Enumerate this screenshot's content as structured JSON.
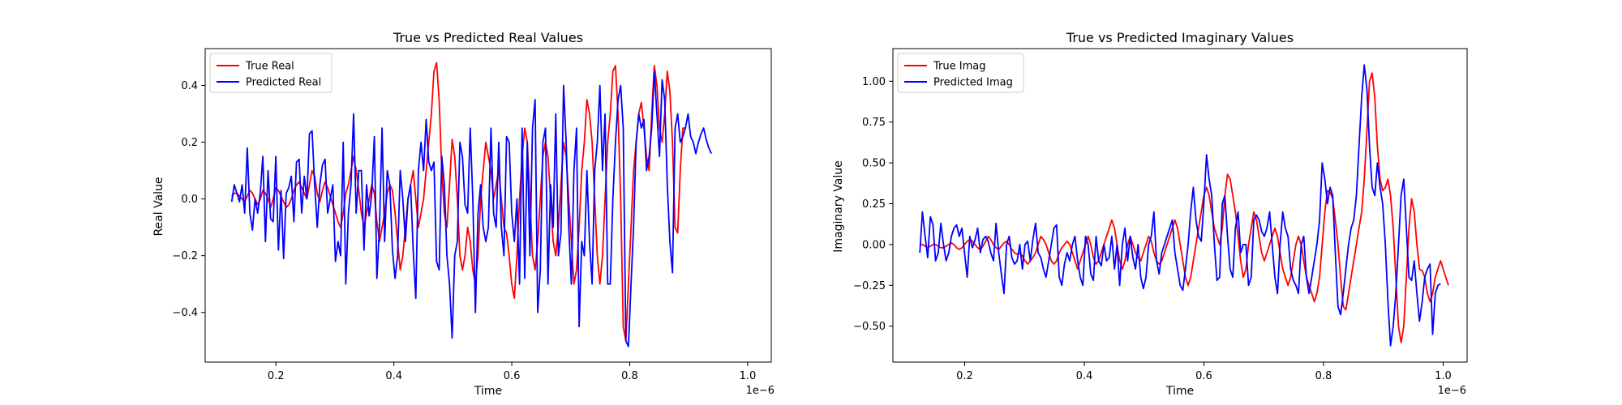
{
  "figure": {
    "width": 2000,
    "height": 500
  },
  "chart_data": [
    {
      "type": "line",
      "title": "True vs Predicted Real Values",
      "xlabel": "Time",
      "ylabel": "Real Value",
      "x_scale_label": "1e−6",
      "xlim": [
        0.08,
        1.04
      ],
      "ylim": [
        -0.575,
        0.53
      ],
      "xticks": [
        0.2,
        0.4,
        0.6,
        0.8,
        1.0
      ],
      "xtick_labels": [
        "0.2",
        "0.4",
        "0.6",
        "0.8",
        "1.0"
      ],
      "yticks": [
        -0.4,
        -0.2,
        0.0,
        0.2,
        0.4
      ],
      "ytick_labels": [
        "−0.4",
        "−0.2",
        "0.0",
        "0.2",
        "0.4"
      ],
      "legend_position": "top-left",
      "grid": false,
      "x": {
        "start": 0.125,
        "end": 1.0,
        "count": 200
      },
      "series": [
        {
          "name": "True Real",
          "color": "#ff0000",
          "values": [
            0.01,
            0.02,
            0.02,
            0.01,
            0.0,
            -0.01,
            0.01,
            0.03,
            0.02,
            0.0,
            -0.02,
            0.0,
            0.03,
            0.02,
            0.0,
            -0.03,
            0.0,
            0.04,
            0.03,
            0.01,
            -0.01,
            -0.03,
            -0.02,
            0.0,
            0.03,
            0.05,
            0.06,
            0.04,
            0.02,
            0.0,
            0.05,
            0.1,
            0.08,
            0.02,
            -0.01,
            0.03,
            0.06,
            0.04,
            0.01,
            -0.02,
            -0.05,
            -0.08,
            -0.1,
            -0.05,
            0.02,
            0.05,
            0.1,
            0.15,
            0.1,
            0.03,
            -0.05,
            -0.1,
            -0.05,
            0.0,
            0.05,
            0.02,
            -0.08,
            -0.15,
            -0.1,
            -0.05,
            0.02,
            0.05,
            0.03,
            -0.05,
            -0.15,
            -0.25,
            -0.2,
            -0.1,
            0.0,
            0.05,
            0.1,
            0.0,
            -0.1,
            -0.05,
            0.0,
            0.1,
            0.2,
            0.3,
            0.45,
            0.48,
            0.35,
            0.1,
            -0.05,
            -0.1,
            0.05,
            0.21,
            0.15,
            0.0,
            -0.2,
            -0.25,
            -0.2,
            -0.1,
            -0.15,
            -0.25,
            -0.3,
            -0.2,
            0.0,
            0.1,
            0.2,
            0.15,
            0.1,
            0.0,
            0.05,
            0.1,
            0.0,
            -0.1,
            -0.12,
            -0.2,
            -0.3,
            -0.35,
            -0.2,
            0.0,
            0.15,
            0.25,
            0.2,
            0.0,
            -0.2,
            -0.25,
            -0.15,
            0.0,
            0.15,
            0.2,
            0.15,
            0.0,
            -0.15,
            -0.2,
            -0.1,
            0.05,
            0.2,
            0.15,
            0.0,
            -0.15,
            -0.3,
            -0.25,
            -0.1,
            0.1,
            0.2,
            0.35,
            0.3,
            0.2,
            0.0,
            -0.2,
            -0.3,
            -0.2,
            0.0,
            0.2,
            0.3,
            0.45,
            0.47,
            0.3,
            0.0,
            -0.45,
            -0.5,
            -0.3,
            -0.1,
            0.1,
            0.2,
            0.3,
            0.34,
            0.25,
            0.15,
            0.1,
            0.3,
            0.47,
            0.4,
            0.25,
            0.2,
            0.3,
            0.45,
            0.38,
            0.2,
            -0.1,
            -0.12,
            0.1,
            0.25,
            0.25
          ]
        },
        {
          "name": "Predicted Real",
          "color": "#0000ff",
          "values": [
            -0.01,
            0.05,
            0.02,
            -0.01,
            0.05,
            -0.05,
            0.18,
            -0.05,
            -0.11,
            0.0,
            -0.05,
            0.02,
            0.15,
            -0.15,
            0.1,
            -0.07,
            -0.08,
            0.15,
            -0.18,
            0.03,
            -0.21,
            0.02,
            0.04,
            0.08,
            -0.08,
            0.13,
            0.14,
            -0.05,
            0.08,
            0.0,
            0.23,
            0.24,
            0.05,
            -0.1,
            0.05,
            0.12,
            0.14,
            -0.05,
            0.0,
            0.05,
            -0.22,
            -0.15,
            -0.2,
            0.2,
            -0.3,
            -0.05,
            0.05,
            0.3,
            -0.05,
            0.1,
            0.1,
            -0.18,
            0.05,
            -0.06,
            0.02,
            0.22,
            -0.28,
            -0.1,
            0.25,
            -0.15,
            0.1,
            0.05,
            -0.18,
            -0.28,
            -0.2,
            0.1,
            0.0,
            -0.15,
            0.0,
            0.05,
            -0.18,
            -0.35,
            0.1,
            0.2,
            0.1,
            0.28,
            0.13,
            0.1,
            0.13,
            -0.22,
            -0.25,
            0.15,
            0.05,
            -0.2,
            -0.3,
            -0.49,
            -0.2,
            -0.15,
            0.2,
            0.15,
            -0.02,
            -0.05,
            0.25,
            0.0,
            -0.4,
            -0.05,
            0.05,
            -0.1,
            -0.15,
            -0.1,
            0.25,
            -0.05,
            -0.1,
            0.2,
            -0.1,
            -0.2,
            0.22,
            0.2,
            -0.05,
            -0.15,
            0.0,
            -0.3,
            0.25,
            -0.28,
            0.2,
            -0.2,
            0.25,
            0.35,
            -0.4,
            -0.25,
            0.2,
            0.25,
            -0.3,
            0.05,
            -0.1,
            0.3,
            -0.2,
            -0.12,
            0.4,
            0.2,
            -0.1,
            -0.3,
            0.1,
            0.25,
            -0.45,
            -0.15,
            -0.2,
            0.1,
            -0.15,
            -0.3,
            0.1,
            0.2,
            0.4,
            0.1,
            0.3,
            -0.3,
            -0.3,
            0.0,
            0.2,
            0.35,
            0.4,
            0.25,
            -0.5,
            -0.52,
            -0.3,
            -0.1,
            0.2,
            0.3,
            0.25,
            0.28,
            0.1,
            0.15,
            0.25,
            0.45,
            0.3,
            0.15,
            0.42,
            0.35,
            0.05,
            -0.15,
            -0.26,
            0.25,
            0.3,
            0.2,
            0.22,
            0.25,
            0.3,
            0.22,
            0.2,
            0.16,
            0.2,
            0.23,
            0.25,
            0.21,
            0.18,
            0.16
          ]
        }
      ]
    },
    {
      "type": "line",
      "title": "True vs Predicted Imaginary Values",
      "xlabel": "Time",
      "ylabel": "Imaginary Value",
      "x_scale_label": "1e−6",
      "xlim": [
        0.08,
        1.04
      ],
      "ylim": [
        -0.72,
        1.2
      ],
      "xticks": [
        0.2,
        0.4,
        0.6,
        0.8,
        1.0
      ],
      "xtick_labels": [
        "0.2",
        "0.4",
        "0.6",
        "0.8",
        "1.0"
      ],
      "yticks": [
        -0.5,
        -0.25,
        0.0,
        0.25,
        0.5,
        0.75,
        1.0
      ],
      "ytick_labels": [
        "−0.50",
        "−0.25",
        "0.00",
        "0.25",
        "0.50",
        "0.75",
        "1.00"
      ],
      "legend_position": "top-left",
      "grid": false,
      "x": {
        "start": 0.125,
        "end": 1.0,
        "count": 200
      },
      "series": [
        {
          "name": "True Imag",
          "color": "#ff0000",
          "values": [
            0.0,
            0.0,
            -0.01,
            -0.02,
            -0.01,
            0.0,
            0.0,
            -0.01,
            -0.02,
            -0.02,
            -0.01,
            0.0,
            0.01,
            0.0,
            -0.02,
            -0.03,
            -0.02,
            0.0,
            0.02,
            0.03,
            0.02,
            0.0,
            -0.02,
            -0.03,
            -0.01,
            0.02,
            0.05,
            0.03,
            0.0,
            -0.02,
            -0.03,
            -0.01,
            0.01,
            0.02,
            0.0,
            -0.03,
            -0.05,
            -0.06,
            -0.05,
            -0.07,
            -0.1,
            -0.12,
            -0.1,
            -0.08,
            -0.05,
            0.0,
            0.05,
            0.03,
            0.0,
            -0.05,
            -0.1,
            -0.12,
            -0.1,
            -0.05,
            -0.02,
            0.0,
            0.02,
            0.0,
            -0.05,
            -0.1,
            -0.15,
            -0.1,
            -0.05,
            0.0,
            0.05,
            0.0,
            -0.08,
            -0.12,
            -0.1,
            -0.05,
            0.0,
            0.05,
            0.1,
            0.15,
            0.1,
            0.0,
            -0.1,
            -0.15,
            -0.1,
            0.0,
            0.05,
            0.0,
            -0.05,
            -0.08,
            -0.1,
            -0.05,
            0.0,
            0.05,
            0.02,
            -0.05,
            -0.1,
            -0.12,
            -0.1,
            -0.05,
            0.0,
            0.05,
            0.1,
            0.15,
            0.1,
            0.0,
            -0.1,
            -0.2,
            -0.25,
            -0.2,
            -0.1,
            0.0,
            0.1,
            0.2,
            0.3,
            0.35,
            0.3,
            0.2,
            0.1,
            0.05,
            0.0,
            0.1,
            0.3,
            0.43,
            0.4,
            0.3,
            0.2,
            0.05,
            -0.1,
            -0.2,
            -0.15,
            0.0,
            0.1,
            0.2,
            0.15,
            0.05,
            -0.05,
            -0.1,
            -0.05,
            0.0,
            0.05,
            0.1,
            0.05,
            -0.05,
            -0.15,
            -0.2,
            -0.25,
            -0.2,
            -0.1,
            0.0,
            0.05,
            0.0,
            -0.1,
            -0.2,
            -0.25,
            -0.3,
            -0.35,
            -0.3,
            -0.2,
            0.0,
            0.2,
            0.33,
            0.32,
            0.28,
            0.15,
            0.0,
            -0.2,
            -0.38,
            -0.4,
            -0.3,
            -0.2,
            -0.1,
            0.0,
            0.1,
            0.2,
            0.4,
            0.7,
            1.0,
            1.05,
            0.9,
            0.6,
            0.4,
            0.33,
            0.35,
            0.4,
            0.3,
            0.1,
            -0.2,
            -0.5,
            -0.6,
            -0.5,
            -0.2,
            0.1,
            0.28,
            0.2,
            0.0,
            -0.15,
            -0.16,
            -0.2,
            -0.3,
            -0.35,
            -0.3,
            -0.2,
            -0.15,
            -0.1,
            -0.15,
            -0.2,
            -0.25
          ]
        },
        {
          "name": "Predicted Imag",
          "color": "#0000ff",
          "values": [
            -0.05,
            0.2,
            0.05,
            -0.08,
            0.17,
            0.12,
            -0.1,
            -0.05,
            0.13,
            0.0,
            -0.1,
            -0.05,
            0.05,
            0.1,
            0.12,
            0.05,
            0.1,
            -0.05,
            -0.2,
            0.05,
            -0.02,
            0.03,
            0.1,
            -0.05,
            0.03,
            0.05,
            0.02,
            -0.05,
            -0.1,
            0.13,
            -0.05,
            -0.18,
            -0.3,
            0.0,
            0.05,
            -0.08,
            -0.12,
            -0.1,
            0.0,
            -0.15,
            0.0,
            0.02,
            -0.1,
            0.03,
            0.13,
            -0.05,
            -0.08,
            -0.15,
            -0.2,
            -0.1,
            0.0,
            0.1,
            0.12,
            -0.2,
            -0.25,
            -0.12,
            -0.05,
            -0.1,
            0.0,
            0.05,
            -0.1,
            -0.2,
            -0.25,
            0.05,
            0.0,
            -0.18,
            -0.22,
            0.05,
            -0.1,
            -0.13,
            0.0,
            -0.1,
            -0.08,
            0.05,
            -0.15,
            0.0,
            -0.25,
            0.0,
            0.1,
            -0.1,
            0.05,
            -0.08,
            -0.15,
            0.0,
            -0.2,
            -0.27,
            -0.2,
            0.0,
            0.05,
            0.2,
            -0.1,
            -0.18,
            -0.05,
            0.0,
            0.05,
            0.1,
            0.15,
            -0.05,
            -0.15,
            -0.25,
            -0.28,
            -0.15,
            0.0,
            0.2,
            0.35,
            0.15,
            0.05,
            0.02,
            0.25,
            0.55,
            0.4,
            0.3,
            0.0,
            -0.22,
            -0.2,
            0.25,
            0.3,
            0.05,
            -0.15,
            -0.2,
            0.1,
            0.2,
            -0.05,
            0.0,
            0.0,
            -0.25,
            -0.2,
            0.15,
            0.18,
            0.15,
            0.08,
            0.05,
            0.1,
            0.2,
            0.0,
            -0.2,
            -0.3,
            0.0,
            0.2,
            0.1,
            0.05,
            -0.15,
            -0.22,
            -0.25,
            -0.3,
            0.0,
            0.05,
            -0.2,
            -0.3,
            -0.2,
            -0.1,
            0.0,
            0.15,
            0.5,
            0.4,
            0.25,
            0.35,
            0.3,
            -0.05,
            -0.38,
            -0.43,
            -0.3,
            -0.15,
            0.0,
            0.1,
            0.15,
            0.3,
            0.6,
            0.9,
            1.1,
            0.95,
            0.6,
            0.35,
            0.3,
            0.5,
            0.35,
            0.25,
            0.0,
            -0.35,
            -0.62,
            -0.5,
            -0.3,
            0.0,
            0.3,
            0.4,
            0.1,
            -0.2,
            -0.22,
            -0.1,
            -0.3,
            -0.47,
            -0.35,
            -0.2,
            -0.15,
            -0.12,
            -0.55,
            -0.3,
            -0.25,
            -0.24
          ]
        }
      ]
    }
  ]
}
